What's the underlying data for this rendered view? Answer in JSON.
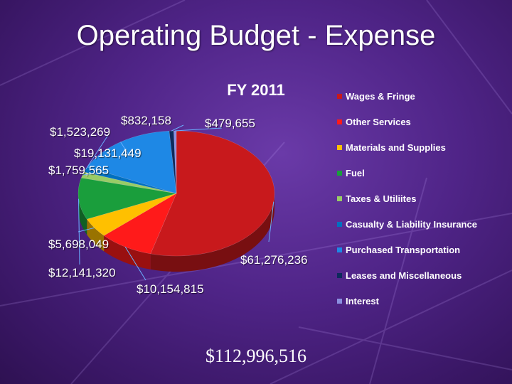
{
  "slide": {
    "title": "Operating Budget - Expense",
    "total": "$112,996,516"
  },
  "chart_data": {
    "type": "pie",
    "title": "FY 2011",
    "series": [
      {
        "name": "Wages & Fringe",
        "value": 61276236,
        "label": "$61,276,236",
        "color": "#c8191c"
      },
      {
        "name": "Other Services",
        "value": 10154815,
        "label": "$10,154,815",
        "color": "#ff1a1a"
      },
      {
        "name": "Materials and Supplies",
        "value": 5698049,
        "label": "$5,698,049",
        "color": "#ffc000"
      },
      {
        "name": "Fuel",
        "value": 12141320,
        "label": "$12,141,320",
        "color": "#1a9e3c"
      },
      {
        "name": "Taxes & Utiliites",
        "value": 1759565,
        "label": "$1,759,565",
        "color": "#99cc66"
      },
      {
        "name": "Casualty & Liability Insurance",
        "value": 1523269,
        "label": "$1,523,269",
        "color": "#0070c0"
      },
      {
        "name": "Purchased Transportation",
        "value": 19131449,
        "label": "$19,131,449",
        "color": "#1e88e5"
      },
      {
        "name": "Leases and Miscellaneous",
        "value": 832158,
        "label": "$832,158",
        "color": "#0d2a5c"
      },
      {
        "name": "Interest",
        "value": 479655,
        "label": "$479,655",
        "color": "#8a8fe0"
      }
    ],
    "legend_position": "right"
  }
}
